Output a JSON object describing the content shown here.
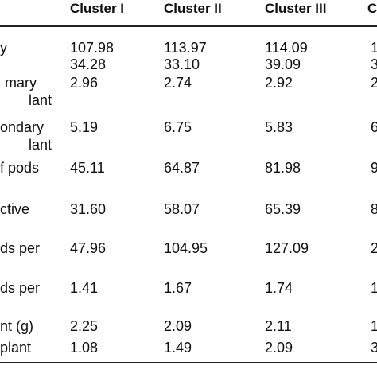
{
  "table": {
    "header": [
      "Cluster I",
      "Cluster II",
      "Cluster III",
      "C"
    ],
    "rows": [
      {
        "label": [
          "y"
        ],
        "cells": [
          "107.98",
          "113.97",
          "114.09",
          "1"
        ]
      },
      {
        "label": [],
        "cells": [
          "34.28",
          "33.10",
          "39.09",
          "3"
        ]
      },
      {
        "label": [
          "mary",
          "lant"
        ],
        "cells": [
          "2.96",
          "2.74",
          "2.92",
          "2"
        ]
      },
      {
        "label": [
          "ondary",
          "lant"
        ],
        "cells": [
          "5.19",
          "6.75",
          "5.83",
          "6"
        ]
      },
      {
        "label": [
          "f pods"
        ],
        "cells": [
          "45.11",
          "64.87",
          "81.98",
          "9"
        ]
      },
      {
        "label": [
          "ctive"
        ],
        "cells": [
          "31.60",
          "58.07",
          "65.39",
          "8"
        ]
      },
      {
        "label": [
          "ds per"
        ],
        "cells": [
          "47.96",
          "104.95",
          "127.09",
          "2"
        ]
      },
      {
        "label": [
          "ds per"
        ],
        "cells": [
          "1.41",
          "1.67",
          "1.74",
          "1"
        ]
      },
      {
        "label": [
          "nt (g)"
        ],
        "cells": [
          "2.25",
          "2.09",
          "2.11",
          "1"
        ]
      },
      {
        "label": [
          "plant"
        ],
        "cells": [
          "1.08",
          "1.49",
          "2.09",
          "3"
        ]
      }
    ]
  }
}
